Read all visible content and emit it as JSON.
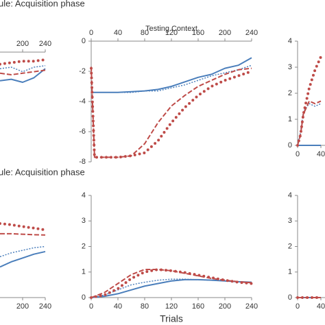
{
  "headings": [
    "ule: Acquisition phase",
    "ule: Acquisition phase"
  ],
  "chart_data": [
    {
      "type": "line",
      "x_axis_position": "top",
      "x": [
        160,
        180,
        200,
        220,
        240
      ],
      "xlim": [
        0,
        240
      ],
      "xticks": [
        200,
        240
      ],
      "ylim": [
        -8,
        0
      ],
      "series": [
        {
          "color": "#4a7ebb",
          "style": "solid",
          "values": [
            -1.9,
            -1.8,
            -2.0,
            -1.7,
            -1.1
          ]
        },
        {
          "color": "#4a7ebb",
          "style": "dotted",
          "values": [
            -1.1,
            -1.0,
            -1.3,
            -1.0,
            -0.9
          ]
        },
        {
          "color": "#be4b48",
          "style": "dashed",
          "values": [
            -1.4,
            -1.5,
            -1.4,
            -1.3,
            -1.2
          ]
        },
        {
          "color": "#be4b48",
          "style": "dots",
          "values": [
            -0.8,
            -0.7,
            -0.6,
            -0.6,
            -0.5
          ]
        }
      ]
    },
    {
      "type": "line",
      "x_axis_position": "top",
      "title": "Testing Context",
      "x": [
        0,
        5,
        20,
        40,
        60,
        80,
        100,
        120,
        140,
        160,
        180,
        200,
        220,
        240
      ],
      "xlim": [
        0,
        240
      ],
      "xticks": [
        0,
        40,
        80,
        120,
        160,
        200,
        240
      ],
      "ylim": [
        -8,
        0
      ],
      "yticks": [
        0,
        -2,
        -4,
        -6,
        -8
      ],
      "series": [
        {
          "color": "#4a7ebb",
          "style": "solid",
          "values": [
            -3.4,
            -3.4,
            -3.4,
            -3.4,
            -3.35,
            -3.3,
            -3.2,
            -3.0,
            -2.7,
            -2.4,
            -2.2,
            -1.8,
            -1.6,
            -1.1
          ]
        },
        {
          "color": "#4a7ebb",
          "style": "dotted",
          "values": [
            -3.4,
            -3.4,
            -3.4,
            -3.4,
            -3.4,
            -3.3,
            -3.3,
            -3.1,
            -2.9,
            -2.6,
            -2.3,
            -2.1,
            -1.9,
            -1.6
          ]
        },
        {
          "color": "#be4b48",
          "style": "dashed",
          "values": [
            -1.7,
            -7.7,
            -7.7,
            -7.7,
            -7.6,
            -6.8,
            -5.4,
            -4.3,
            -3.6,
            -3.0,
            -2.6,
            -2.2,
            -1.9,
            -1.8
          ]
        },
        {
          "color": "#be4b48",
          "style": "dots",
          "values": [
            -1.8,
            -7.7,
            -7.7,
            -7.7,
            -7.6,
            -7.4,
            -6.6,
            -5.4,
            -4.4,
            -3.6,
            -3.0,
            -2.6,
            -2.3,
            -2.0
          ]
        }
      ]
    },
    {
      "type": "line",
      "x_axis_position": "bottom",
      "x": [
        0,
        5,
        10,
        20,
        30,
        40
      ],
      "xlim": [
        0,
        240
      ],
      "xticks": [
        0,
        40
      ],
      "ylim": [
        0,
        4
      ],
      "yticks": [
        0,
        1,
        2,
        3,
        4
      ],
      "series": [
        {
          "color": "#4a7ebb",
          "style": "solid",
          "values": [
            0,
            0,
            0,
            0,
            0,
            0
          ]
        },
        {
          "color": "#4a7ebb",
          "style": "dotted",
          "values": [
            0,
            0.5,
            1.3,
            1.6,
            1.5,
            1.6
          ]
        },
        {
          "color": "#be4b48",
          "style": "dashed",
          "values": [
            0,
            0.4,
            1.2,
            1.7,
            1.6,
            1.7
          ]
        },
        {
          "color": "#be4b48",
          "style": "dots",
          "values": [
            0,
            0.4,
            1.2,
            2.2,
            2.9,
            3.4
          ]
        }
      ]
    },
    {
      "type": "line",
      "x_axis_position": "bottom",
      "x": [
        160,
        180,
        200,
        220,
        240
      ],
      "xlim": [
        0,
        240
      ],
      "xticks": [
        200,
        240
      ],
      "ylim": [
        0,
        4
      ],
      "series": [
        {
          "color": "#4a7ebb",
          "style": "solid",
          "values": [
            1.2,
            1.4,
            1.55,
            1.7,
            1.8
          ]
        },
        {
          "color": "#4a7ebb",
          "style": "dotted",
          "values": [
            1.6,
            1.75,
            1.85,
            1.95,
            2.0
          ]
        },
        {
          "color": "#be4b48",
          "style": "dashed",
          "values": [
            2.5,
            2.5,
            2.48,
            2.46,
            2.45
          ]
        },
        {
          "color": "#be4b48",
          "style": "dots",
          "values": [
            2.9,
            2.85,
            2.78,
            2.72,
            2.65
          ]
        }
      ]
    },
    {
      "type": "line",
      "x_axis_position": "bottom",
      "xlabel": "Trials",
      "x": [
        0,
        20,
        40,
        60,
        80,
        100,
        120,
        140,
        160,
        180,
        200,
        220,
        240
      ],
      "xlim": [
        0,
        240
      ],
      "xticks": [
        0,
        40,
        80,
        120,
        160,
        200,
        240
      ],
      "ylim": [
        0,
        4
      ],
      "yticks": [
        0,
        1,
        2,
        3,
        4
      ],
      "series": [
        {
          "color": "#4a7ebb",
          "style": "solid",
          "values": [
            0,
            0.05,
            0.15,
            0.3,
            0.45,
            0.55,
            0.65,
            0.7,
            0.7,
            0.68,
            0.65,
            0.62,
            0.6
          ]
        },
        {
          "color": "#4a7ebb",
          "style": "dotted",
          "values": [
            0,
            0.1,
            0.3,
            0.5,
            0.6,
            0.68,
            0.72,
            0.72,
            0.7,
            0.68,
            0.65,
            0.62,
            0.6
          ]
        },
        {
          "color": "#be4b48",
          "style": "dashed",
          "values": [
            0,
            0.2,
            0.55,
            0.9,
            1.1,
            1.1,
            1.05,
            0.95,
            0.85,
            0.75,
            0.68,
            0.62,
            0.58
          ]
        },
        {
          "color": "#be4b48",
          "style": "dots",
          "values": [
            0,
            0.1,
            0.35,
            0.75,
            1.0,
            1.1,
            1.05,
            0.98,
            0.88,
            0.78,
            0.68,
            0.6,
            0.55
          ]
        }
      ]
    },
    {
      "type": "line",
      "x_axis_position": "bottom",
      "x": [
        0,
        10,
        20,
        30,
        40
      ],
      "xlim": [
        0,
        240
      ],
      "xticks": [
        0,
        40
      ],
      "ylim": [
        0,
        4
      ],
      "yticks": [
        0,
        1,
        2,
        3,
        4
      ],
      "series": [
        {
          "color": "#4a7ebb",
          "style": "solid",
          "values": [
            0,
            0,
            0,
            0,
            0
          ]
        },
        {
          "color": "#4a7ebb",
          "style": "dotted",
          "values": [
            0,
            0,
            0,
            0,
            0
          ]
        },
        {
          "color": "#be4b48",
          "style": "dashed",
          "values": [
            0,
            0,
            0,
            0,
            0
          ]
        },
        {
          "color": "#be4b48",
          "style": "dots",
          "values": [
            0,
            0,
            0,
            0,
            0
          ]
        }
      ]
    }
  ]
}
